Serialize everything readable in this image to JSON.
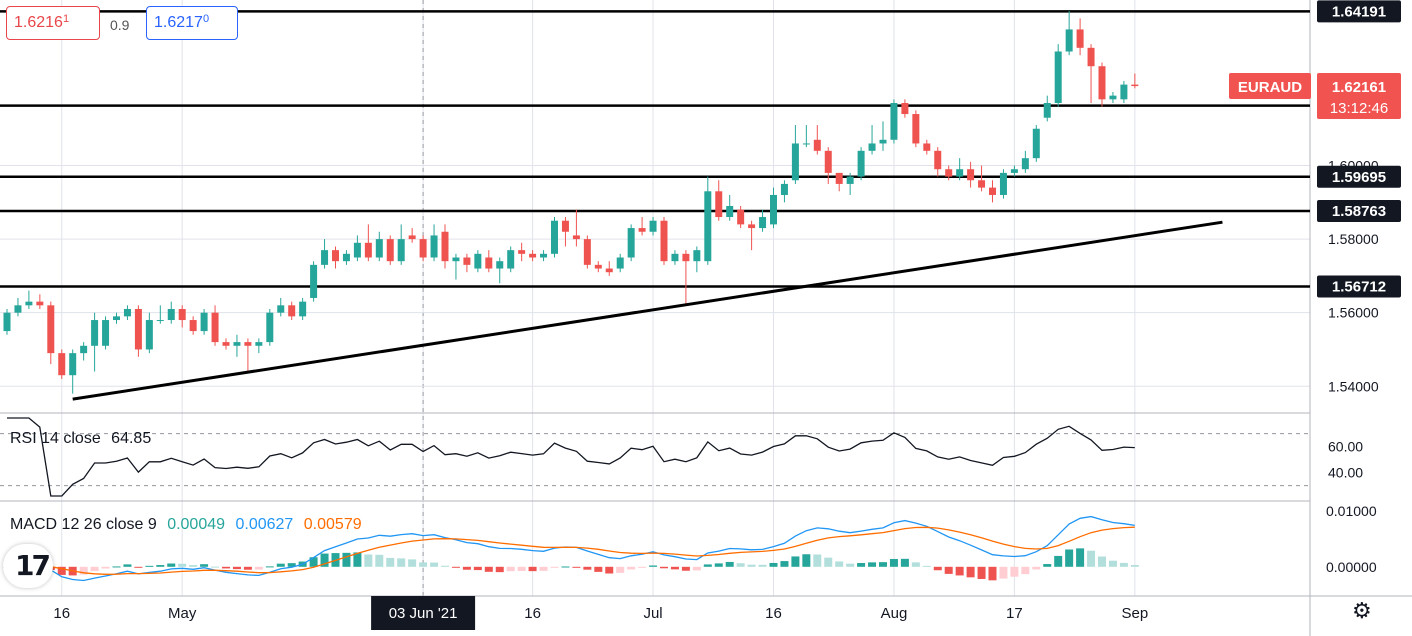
{
  "symbol": "EURAUD",
  "quote": {
    "bid_main": "1.6216",
    "bid_frac": "1",
    "ask_main": "1.6217",
    "ask_frac": "0",
    "spread": "0.9",
    "countdown": "13:12:46"
  },
  "rsi": {
    "label": "RSI 14 close",
    "value": "64.85",
    "upper_band": 70,
    "lower_band": 30,
    "axis_labels": [
      "60.00",
      "40.00"
    ]
  },
  "macd": {
    "label": "MACD 12 26 close 9",
    "hist_value": "0.00049",
    "macd_value": "0.00627",
    "signal_value": "0.00579",
    "axis_labels": [
      "0.01000",
      "0.00000"
    ]
  },
  "colors": {
    "up": "#26a69a",
    "down": "#ef5350",
    "hist_up": "#26a69a",
    "hist_up_light": "#b2dfdb",
    "hist_down": "#ef5350",
    "hist_down_light": "#ffcdd2",
    "macd_line": "#2196f3",
    "signal_line": "#ff6d00",
    "rsi_line": "#131722",
    "grid": "#e0e3eb",
    "label_bg": "#f05350"
  },
  "chart_data": {
    "type": "candlestick",
    "title": "EURAUD",
    "ylim": [
      1.533,
      1.645
    ],
    "y_ticks": [
      "1.54000",
      "1.56000",
      "1.58000",
      "1.60000"
    ],
    "x_labels": [
      {
        "label": "16",
        "index": 5
      },
      {
        "label": "May",
        "index": 16
      },
      {
        "label": "03 Jun '21",
        "index": 38
      },
      {
        "label": "16",
        "index": 48
      },
      {
        "label": "Jul",
        "index": 59
      },
      {
        "label": "16",
        "index": 70
      },
      {
        "label": "Aug",
        "index": 81
      },
      {
        "label": "17",
        "index": 92
      },
      {
        "label": "Sep",
        "index": 103
      }
    ],
    "crosshair_index": 38,
    "horizontal_levels": [
      "1.64191",
      "1.61630",
      "1.59695",
      "1.58763",
      "1.56712"
    ],
    "trendline": {
      "start": {
        "index": 6,
        "price": 1.5365
      },
      "end": {
        "index": 111,
        "price": 1.5846
      }
    },
    "last_price": "1.62161",
    "candles": [
      [
        1.555,
        1.56,
        1.554,
        1.561
      ],
      [
        1.56,
        1.562,
        1.559,
        1.564
      ],
      [
        1.562,
        1.563,
        1.561,
        1.566
      ],
      [
        1.563,
        1.562,
        1.561,
        1.565
      ],
      [
        1.562,
        1.549,
        1.546,
        1.563
      ],
      [
        1.549,
        1.543,
        1.542,
        1.55
      ],
      [
        1.543,
        1.549,
        1.538,
        1.55
      ],
      [
        1.549,
        1.551,
        1.547,
        1.552
      ],
      [
        1.551,
        1.558,
        1.544,
        1.56
      ],
      [
        1.551,
        1.558,
        1.55,
        1.559
      ],
      [
        1.558,
        1.559,
        1.557,
        1.56
      ],
      [
        1.559,
        1.561,
        1.558,
        1.562
      ],
      [
        1.561,
        1.55,
        1.548,
        1.562
      ],
      [
        1.55,
        1.558,
        1.549,
        1.56
      ],
      [
        1.558,
        1.558,
        1.557,
        1.562
      ],
      [
        1.558,
        1.561,
        1.557,
        1.563
      ],
      [
        1.561,
        1.558,
        1.556,
        1.562
      ],
      [
        1.558,
        1.555,
        1.554,
        1.559
      ],
      [
        1.555,
        1.56,
        1.554,
        1.561
      ],
      [
        1.56,
        1.552,
        1.551,
        1.562
      ],
      [
        1.552,
        1.551,
        1.55,
        1.553
      ],
      [
        1.551,
        1.552,
        1.548,
        1.554
      ],
      [
        1.552,
        1.551,
        1.544,
        1.553
      ],
      [
        1.551,
        1.552,
        1.549,
        1.553
      ],
      [
        1.552,
        1.56,
        1.551,
        1.561
      ],
      [
        1.56,
        1.562,
        1.559,
        1.564
      ],
      [
        1.562,
        1.559,
        1.558,
        1.563
      ],
      [
        1.559,
        1.563,
        1.558,
        1.564
      ],
      [
        1.564,
        1.573,
        1.563,
        1.574
      ],
      [
        1.573,
        1.577,
        1.572,
        1.58
      ],
      [
        1.577,
        1.574,
        1.572,
        1.578
      ],
      [
        1.574,
        1.576,
        1.573,
        1.577
      ],
      [
        1.575,
        1.579,
        1.574,
        1.581
      ],
      [
        1.579,
        1.575,
        1.574,
        1.584
      ],
      [
        1.575,
        1.58,
        1.574,
        1.582
      ],
      [
        1.58,
        1.574,
        1.573,
        1.581
      ],
      [
        1.574,
        1.58,
        1.573,
        1.584
      ],
      [
        1.581,
        1.58,
        1.579,
        1.583
      ],
      [
        1.58,
        1.575,
        1.574,
        1.581
      ],
      [
        1.575,
        1.581,
        1.574,
        1.584
      ],
      [
        1.582,
        1.574,
        1.572,
        1.584
      ],
      [
        1.574,
        1.575,
        1.569,
        1.576
      ],
      [
        1.575,
        1.573,
        1.571,
        1.576
      ],
      [
        1.572,
        1.576,
        1.571,
        1.577
      ],
      [
        1.575,
        1.572,
        1.571,
        1.577
      ],
      [
        1.572,
        1.574,
        1.568,
        1.575
      ],
      [
        1.572,
        1.577,
        1.571,
        1.578
      ],
      [
        1.577,
        1.576,
        1.574,
        1.579
      ],
      [
        1.576,
        1.575,
        1.574,
        1.577
      ],
      [
        1.575,
        1.576,
        1.574,
        1.577
      ],
      [
        1.576,
        1.585,
        1.575,
        1.586
      ],
      [
        1.585,
        1.582,
        1.578,
        1.586
      ],
      [
        1.581,
        1.58,
        1.578,
        1.588
      ],
      [
        1.58,
        1.573,
        1.572,
        1.581
      ],
      [
        1.573,
        1.572,
        1.571,
        1.574
      ],
      [
        1.572,
        1.571,
        1.57,
        1.574
      ],
      [
        1.572,
        1.575,
        1.571,
        1.576
      ],
      [
        1.575,
        1.583,
        1.574,
        1.584
      ],
      [
        1.583,
        1.582,
        1.581,
        1.586
      ],
      [
        1.582,
        1.585,
        1.581,
        1.586
      ],
      [
        1.585,
        1.574,
        1.573,
        1.586
      ],
      [
        1.574,
        1.576,
        1.573,
        1.577
      ],
      [
        1.576,
        1.574,
        1.562,
        1.577
      ],
      [
        1.574,
        1.577,
        1.571,
        1.578
      ],
      [
        1.574,
        1.593,
        1.573,
        1.597
      ],
      [
        1.593,
        1.586,
        1.585,
        1.596
      ],
      [
        1.586,
        1.589,
        1.585,
        1.592
      ],
      [
        1.588,
        1.584,
        1.583,
        1.589
      ],
      [
        1.584,
        1.583,
        1.577,
        1.585
      ],
      [
        1.583,
        1.586,
        1.582,
        1.588
      ],
      [
        1.584,
        1.592,
        1.583,
        1.594
      ],
      [
        1.592,
        1.595,
        1.59,
        1.596
      ],
      [
        1.596,
        1.606,
        1.595,
        1.611
      ],
      [
        1.606,
        1.606,
        1.605,
        1.611
      ],
      [
        1.607,
        1.604,
        1.603,
        1.611
      ],
      [
        1.604,
        1.598,
        1.595,
        1.605
      ],
      [
        1.598,
        1.595,
        1.593,
        1.598
      ],
      [
        1.595,
        1.597,
        1.592,
        1.598
      ],
      [
        1.597,
        1.604,
        1.596,
        1.605
      ],
      [
        1.604,
        1.606,
        1.603,
        1.611
      ],
      [
        1.606,
        1.607,
        1.604,
        1.612
      ],
      [
        1.607,
        1.617,
        1.606,
        1.618
      ],
      [
        1.617,
        1.614,
        1.613,
        1.618
      ],
      [
        1.614,
        1.606,
        1.605,
        1.615
      ],
      [
        1.606,
        1.604,
        1.603,
        1.607
      ],
      [
        1.604,
        1.599,
        1.597,
        1.605
      ],
      [
        1.599,
        1.597,
        1.596,
        1.6
      ],
      [
        1.597,
        1.599,
        1.596,
        1.602
      ],
      [
        1.599,
        1.596,
        1.594,
        1.601
      ],
      [
        1.596,
        1.594,
        1.593,
        1.6
      ],
      [
        1.594,
        1.592,
        1.59,
        1.596
      ],
      [
        1.592,
        1.598,
        1.591,
        1.599
      ],
      [
        1.598,
        1.599,
        1.597,
        1.6
      ],
      [
        1.599,
        1.602,
        1.598,
        1.604
      ],
      [
        1.602,
        1.61,
        1.601,
        1.611
      ],
      [
        1.613,
        1.617,
        1.612,
        1.619
      ],
      [
        1.617,
        1.631,
        1.616,
        1.633
      ],
      [
        1.631,
        1.637,
        1.63,
        1.642
      ],
      [
        1.637,
        1.632,
        1.63,
        1.64
      ],
      [
        1.632,
        1.627,
        1.617,
        1.633
      ],
      [
        1.627,
        1.618,
        1.616,
        1.628
      ],
      [
        1.618,
        1.619,
        1.617,
        1.62
      ],
      [
        1.618,
        1.622,
        1.617,
        1.623
      ],
      [
        1.622,
        1.6216,
        1.621,
        1.625
      ]
    ]
  }
}
